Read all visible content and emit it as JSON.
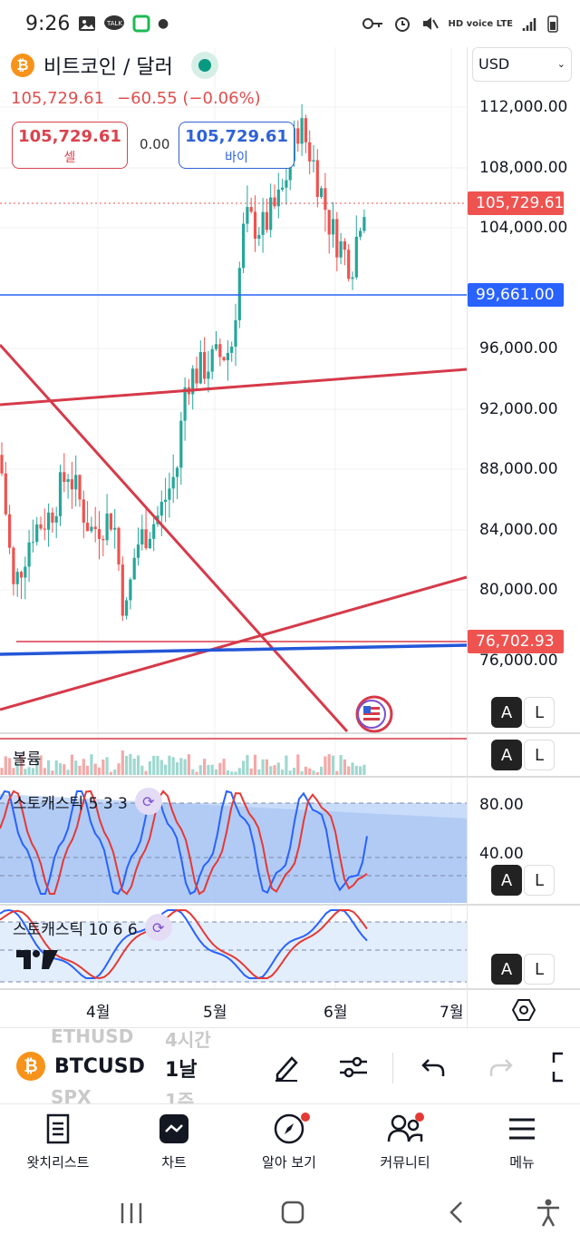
{
  "status_bar": {
    "time": "9:26",
    "network": "HD voice LTE"
  },
  "header": {
    "coin_symbol": "₿",
    "title": "비트코인 / 달러",
    "last_price": "105,729.61",
    "change": "−60.55 (−0.06%)"
  },
  "trade": {
    "sell_value": "105,729.61",
    "sell_label": "셀",
    "spread": "0.00",
    "buy_value": "105,729.61",
    "buy_label": "바이"
  },
  "currency_select": {
    "value": "USD"
  },
  "price_axis": {
    "ticks": [
      "112,000.00",
      "108,000.00",
      "104,000.00",
      "96,000.00",
      "92,000.00",
      "88,000.00",
      "84,000.00",
      "80,000.00",
      "76,000.00"
    ],
    "current_price_label": "105,729.61",
    "blue_line_label": "99,661.00",
    "red_line_label": "76,702.93"
  },
  "panes": {
    "volume_label": "볼륨",
    "stoch1_label": "스토캐스틱 5 3 3",
    "stoch1_ticks": [
      "80.00",
      "40.00"
    ],
    "stoch2_label": "스토캐스틱 10 6 6",
    "scale_a": "A",
    "scale_l": "L"
  },
  "time_axis": {
    "months": [
      "4월",
      "5월",
      "6월",
      "7월"
    ]
  },
  "toolbar": {
    "symbol": "BTCUSD",
    "interval": "1날",
    "ghost_above_symbol": "ETHUSD",
    "ghost_above_interval": "4시간",
    "ghost_below_symbol": "SPX",
    "ghost_below_interval": "1주"
  },
  "bottom_nav": [
    {
      "label": "왓치리스트",
      "icon": "watchlist-icon"
    },
    {
      "label": "차트",
      "icon": "chart-icon"
    },
    {
      "label": "알아 보기",
      "icon": "compass-icon"
    },
    {
      "label": "커뮤니티",
      "icon": "community-icon"
    },
    {
      "label": "메뉴",
      "icon": "menu-icon"
    }
  ],
  "colors": {
    "up": "#26a69a",
    "down": "#ef5350",
    "sell": "#d9434d",
    "buy": "#2f62d6",
    "blue_line": "#2962ff",
    "trend_red": "#d63a4a"
  }
}
